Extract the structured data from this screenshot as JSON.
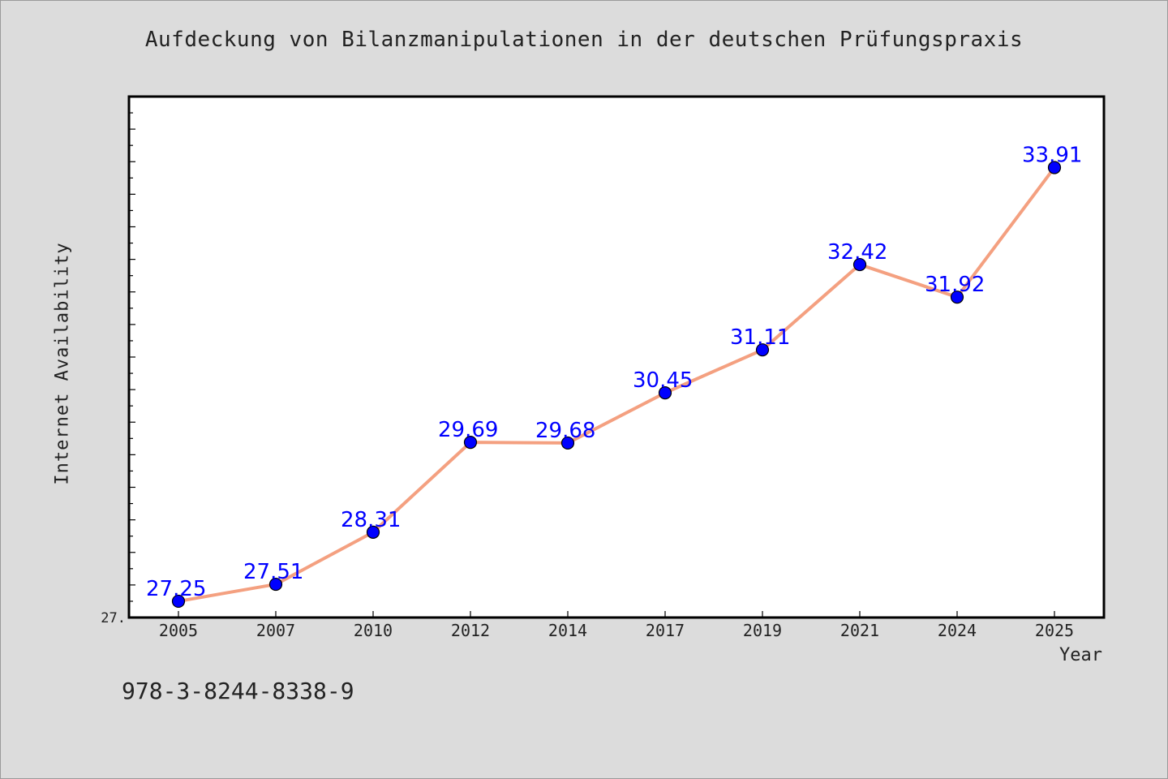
{
  "title": "Aufdeckung von Bilanzmanipulationen in der deutschen Prüfungspraxis",
  "isbn": "978-3-8244-8338-9",
  "chart_data": {
    "type": "line",
    "title": "Aufdeckung von Bilanzmanipulationen in der deutschen Prüfungspraxis",
    "xlabel": "Year",
    "ylabel": "Internet Availability",
    "categories": [
      "2005",
      "2007",
      "2010",
      "2012",
      "2014",
      "2017",
      "2019",
      "2021",
      "2024",
      "2025"
    ],
    "series": [
      {
        "values": [
          27.25,
          27.51,
          28.31,
          29.69,
          29.68,
          30.45,
          31.11,
          32.42,
          31.92,
          33.91
        ]
      }
    ],
    "data_labels": [
      "27.25",
      "27.51",
      "28.31",
      "29.69",
      "29.68",
      "30.45",
      "31.11",
      "32.42",
      "31.92",
      "33.91"
    ],
    "y_tick_label": "27.",
    "ylim": [
      27.0,
      35.0
    ],
    "grid": false,
    "colors": {
      "line": "#f4a080",
      "marker": "#0000ff",
      "label": "#0000ff",
      "background": "#dcdcdc",
      "plot_background": "#ffffff"
    }
  }
}
